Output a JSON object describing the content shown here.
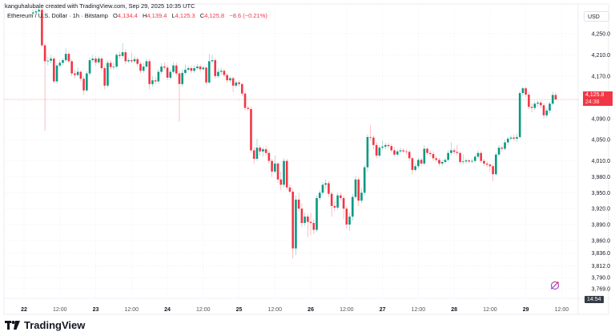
{
  "header": {
    "attribution": "kanguhalubale created with TradingView.com, Sep 29, 2025 10:35 UTC"
  },
  "legend": {
    "symbol": "Ethereum / U.S. Dollar · 1h · Bitstamp",
    "o_label": "O",
    "o": "4,134.4",
    "h_label": "H",
    "h": "4,139.4",
    "l_label": "L",
    "l": "4,125.3",
    "c_label": "C",
    "c": "4,125.8",
    "change": "−8.6 (−0.21%)"
  },
  "price_axis": {
    "currency": "USD"
  },
  "last_price": {
    "value": "4,125.8",
    "countdown": "24:38"
  },
  "time_readout": "14:54",
  "brand": "TradingView",
  "colors": {
    "up": "#089981",
    "down": "#f23645",
    "grid": "#f0f3fa",
    "text": "#131722"
  },
  "chart_data": {
    "type": "candlestick",
    "interval": "1h",
    "y_ticks": [
      4250,
      4210,
      4170,
      4090,
      4050,
      4010,
      3980,
      3950,
      3920,
      3890,
      3860,
      3836,
      3812,
      3790,
      3769
    ],
    "y_tick_labels": [
      "4,250.0",
      "4,210.0",
      "4,170.0",
      "4,090.0",
      "4,050.0",
      "4,010.0",
      "3,980.0",
      "3,950.0",
      "3,920.0",
      "3,890.0",
      "3,860.0",
      "3,836.0",
      "3,812.0",
      "3,790.0",
      "3,769.0"
    ],
    "x_ticks": [
      {
        "label": "22",
        "hour": 0
      },
      {
        "label": "12:00",
        "hour": 12
      },
      {
        "label": "23",
        "hour": 24
      },
      {
        "label": "12:00",
        "hour": 36
      },
      {
        "label": "24",
        "hour": 48
      },
      {
        "label": "12:00",
        "hour": 60
      },
      {
        "label": "25",
        "hour": 72
      },
      {
        "label": "12:00",
        "hour": 84
      },
      {
        "label": "26",
        "hour": 96
      },
      {
        "label": "12:00",
        "hour": 108
      },
      {
        "label": "27",
        "hour": 120
      },
      {
        "label": "12:00",
        "hour": 132
      },
      {
        "label": "28",
        "hour": 144
      },
      {
        "label": "12:00",
        "hour": 156
      },
      {
        "label": "29",
        "hour": 168
      },
      {
        "label": "12:00",
        "hour": 180
      }
    ],
    "first_candle_hour": 3,
    "last_price": 4125.8,
    "ohlc": [
      [
        4288,
        4296,
        4284,
        4290
      ],
      [
        4290,
        4297,
        4286,
        4292
      ],
      [
        4292,
        4300,
        4289,
        4295
      ],
      [
        4295,
        4298,
        4225,
        4228
      ],
      [
        4228,
        4232,
        4067,
        4198
      ],
      [
        4198,
        4206,
        4190,
        4199
      ],
      [
        4199,
        4210,
        4194,
        4203
      ],
      [
        4203,
        4207,
        4156,
        4160
      ],
      [
        4160,
        4194,
        4155,
        4190
      ],
      [
        4190,
        4200,
        4186,
        4195
      ],
      [
        4195,
        4204,
        4190,
        4200
      ],
      [
        4200,
        4222,
        4196,
        4212
      ],
      [
        4212,
        4216,
        4194,
        4198
      ],
      [
        4198,
        4202,
        4170,
        4175
      ],
      [
        4175,
        4182,
        4166,
        4172
      ],
      [
        4172,
        4186,
        4170,
        4178
      ],
      [
        4178,
        4181,
        4160,
        4165
      ],
      [
        4165,
        4170,
        4135,
        4143
      ],
      [
        4143,
        4180,
        4140,
        4175
      ],
      [
        4175,
        4205,
        4170,
        4200
      ],
      [
        4200,
        4210,
        4196,
        4203
      ],
      [
        4203,
        4208,
        4190,
        4196
      ],
      [
        4196,
        4208,
        4192,
        4203
      ],
      [
        4203,
        4207,
        4180,
        4185
      ],
      [
        4185,
        4190,
        4145,
        4152
      ],
      [
        4152,
        4200,
        4148,
        4195
      ],
      [
        4195,
        4200,
        4182,
        4187
      ],
      [
        4187,
        4195,
        4182,
        4188
      ],
      [
        4188,
        4214,
        4185,
        4210
      ],
      [
        4210,
        4216,
        4203,
        4208
      ],
      [
        4208,
        4232,
        4204,
        4215
      ],
      [
        4215,
        4220,
        4192,
        4198
      ],
      [
        4198,
        4204,
        4194,
        4200
      ],
      [
        4200,
        4214,
        4194,
        4198
      ],
      [
        4198,
        4208,
        4194,
        4202
      ],
      [
        4202,
        4206,
        4188,
        4193
      ],
      [
        4193,
        4197,
        4175,
        4180
      ],
      [
        4180,
        4195,
        4176,
        4188
      ],
      [
        4188,
        4203,
        4183,
        4198
      ],
      [
        4198,
        4202,
        4145,
        4155
      ],
      [
        4155,
        4170,
        4150,
        4162
      ],
      [
        4162,
        4168,
        4155,
        4160
      ],
      [
        4160,
        4183,
        4156,
        4178
      ],
      [
        4178,
        4194,
        4174,
        4188
      ],
      [
        4188,
        4196,
        4182,
        4186
      ],
      [
        4186,
        4190,
        4162,
        4167
      ],
      [
        4167,
        4183,
        4163,
        4178
      ],
      [
        4178,
        4196,
        4174,
        4190
      ],
      [
        4190,
        4195,
        4170,
        4175
      ],
      [
        4175,
        4180,
        4084,
        4155
      ],
      [
        4155,
        4182,
        4150,
        4176
      ],
      [
        4176,
        4192,
        4172,
        4182
      ],
      [
        4182,
        4190,
        4178,
        4185
      ],
      [
        4185,
        4190,
        4175,
        4180
      ],
      [
        4180,
        4190,
        4176,
        4185
      ],
      [
        4185,
        4193,
        4182,
        4188
      ],
      [
        4188,
        4192,
        4178,
        4183
      ],
      [
        4183,
        4190,
        4180,
        4186
      ],
      [
        4186,
        4189,
        4154,
        4158
      ],
      [
        4158,
        4212,
        4155,
        4198
      ],
      [
        4198,
        4210,
        4194,
        4200
      ],
      [
        4200,
        4204,
        4165,
        4170
      ],
      [
        4170,
        4185,
        4166,
        4178
      ],
      [
        4178,
        4186,
        4172,
        4180
      ],
      [
        4180,
        4184,
        4168,
        4172
      ],
      [
        4172,
        4176,
        4158,
        4162
      ],
      [
        4162,
        4170,
        4158,
        4166
      ],
      [
        4166,
        4169,
        4140,
        4152
      ],
      [
        4152,
        4162,
        4148,
        4158
      ],
      [
        4158,
        4162,
        4150,
        4155
      ],
      [
        4155,
        4158,
        4132,
        4137
      ],
      [
        4137,
        4141,
        4105,
        4110
      ],
      [
        4110,
        4114,
        4104,
        4108
      ],
      [
        4108,
        4112,
        4026,
        4030
      ],
      [
        4030,
        4036,
        4005,
        4014
      ],
      [
        4014,
        4052,
        4010,
        4035
      ],
      [
        4035,
        4040,
        4020,
        4028
      ],
      [
        4028,
        4036,
        4018,
        4032
      ],
      [
        4032,
        4038,
        4020,
        4025
      ],
      [
        4025,
        4030,
        4005,
        4010
      ],
      [
        4010,
        4014,
        3980,
        3990
      ],
      [
        3990,
        4020,
        3986,
        4005
      ],
      [
        4005,
        4008,
        3968,
        3975
      ],
      [
        3975,
        3990,
        3955,
        3965
      ],
      [
        3965,
        4015,
        3960,
        4010
      ],
      [
        4010,
        4014,
        3955,
        3960
      ],
      [
        3960,
        3966,
        3948,
        3952
      ],
      [
        3952,
        3958,
        3826,
        3845
      ],
      [
        3845,
        3945,
        3832,
        3937
      ],
      [
        3937,
        3950,
        3915,
        3920
      ],
      [
        3920,
        3930,
        3885,
        3893
      ],
      [
        3893,
        3912,
        3888,
        3905
      ],
      [
        3905,
        3910,
        3866,
        3895
      ],
      [
        3895,
        3912,
        3870,
        3893
      ],
      [
        3893,
        3900,
        3872,
        3880
      ],
      [
        3880,
        3945,
        3876,
        3940
      ],
      [
        3940,
        3955,
        3935,
        3950
      ],
      [
        3950,
        3970,
        3946,
        3965
      ],
      [
        3965,
        3975,
        3958,
        3968
      ],
      [
        3968,
        3972,
        3942,
        3948
      ],
      [
        3948,
        3952,
        3905,
        3925
      ],
      [
        3925,
        3935,
        3915,
        3922
      ],
      [
        3922,
        3950,
        3918,
        3945
      ],
      [
        3945,
        3950,
        3935,
        3940
      ],
      [
        3940,
        3945,
        3900,
        3920
      ],
      [
        3920,
        3925,
        3882,
        3890
      ],
      [
        3890,
        3912,
        3878,
        3905
      ],
      [
        3905,
        3948,
        3898,
        3942
      ],
      [
        3942,
        3982,
        3938,
        3975
      ],
      [
        3975,
        3980,
        3925,
        3935
      ],
      [
        3935,
        3958,
        3930,
        3950
      ],
      [
        3950,
        4002,
        3945,
        3998
      ],
      [
        3998,
        4060,
        3990,
        4055
      ],
      [
        4055,
        4077,
        4048,
        4054
      ],
      [
        4054,
        4058,
        4032,
        4040
      ],
      [
        4040,
        4045,
        4015,
        4020
      ],
      [
        4020,
        4040,
        4016,
        4035
      ],
      [
        4035,
        4048,
        4030,
        4037
      ],
      [
        4037,
        4044,
        4032,
        4040
      ],
      [
        4040,
        4044,
        4034,
        4038
      ],
      [
        4038,
        4042,
        4026,
        4030
      ],
      [
        4030,
        4036,
        4018,
        4022
      ],
      [
        4022,
        4032,
        4018,
        4028
      ],
      [
        4028,
        4035,
        4024,
        4030
      ],
      [
        4030,
        4034,
        4025,
        4028
      ],
      [
        4028,
        4032,
        4022,
        4027
      ],
      [
        4027,
        4030,
        4010,
        4015
      ],
      [
        4015,
        4018,
        3985,
        3993
      ],
      [
        3993,
        4005,
        3990,
        4000
      ],
      [
        4000,
        4016,
        3996,
        4012
      ],
      [
        4012,
        4016,
        4000,
        4005
      ],
      [
        4005,
        4040,
        4002,
        4033
      ],
      [
        4033,
        4036,
        4020,
        4025
      ],
      [
        4025,
        4030,
        4018,
        4023
      ],
      [
        4023,
        4028,
        4010,
        4015
      ],
      [
        4015,
        4020,
        4008,
        4012
      ],
      [
        4012,
        4016,
        4000,
        4005
      ],
      [
        4005,
        4012,
        4000,
        4008
      ],
      [
        4008,
        4016,
        4004,
        4012
      ],
      [
        4012,
        4030,
        4008,
        4025
      ],
      [
        4025,
        4045,
        4020,
        4030
      ],
      [
        4030,
        4034,
        4022,
        4027
      ],
      [
        4027,
        4040,
        4020,
        4025
      ],
      [
        4025,
        4028,
        4004,
        4008
      ],
      [
        4008,
        4022,
        4004,
        4009
      ],
      [
        4009,
        4015,
        4005,
        4011
      ],
      [
        4011,
        4014,
        4006,
        4009
      ],
      [
        4009,
        4014,
        4006,
        4010
      ],
      [
        4010,
        4022,
        4007,
        4018
      ],
      [
        4018,
        4030,
        4014,
        4025
      ],
      [
        4025,
        4028,
        4006,
        4010
      ],
      [
        4010,
        4014,
        4000,
        4005
      ],
      [
        4005,
        4010,
        3998,
        4003
      ],
      [
        4003,
        4006,
        3990,
        4000
      ],
      [
        4000,
        4004,
        3972,
        3985
      ],
      [
        3985,
        4026,
        3982,
        4022
      ],
      [
        4022,
        4040,
        4018,
        4035
      ],
      [
        4035,
        4038,
        4028,
        4033
      ],
      [
        4033,
        4050,
        4030,
        4045
      ],
      [
        4045,
        4056,
        4040,
        4052
      ],
      [
        4052,
        4058,
        4048,
        4054
      ],
      [
        4054,
        4060,
        4048,
        4052
      ],
      [
        4052,
        4062,
        4046,
        4055
      ],
      [
        4055,
        4142,
        4052,
        4138
      ],
      [
        4138,
        4150,
        4132,
        4147
      ],
      [
        4147,
        4150,
        4130,
        4135
      ],
      [
        4135,
        4140,
        4108,
        4112
      ],
      [
        4112,
        4118,
        4102,
        4110
      ],
      [
        4110,
        4122,
        4106,
        4118
      ],
      [
        4118,
        4124,
        4112,
        4120
      ],
      [
        4120,
        4124,
        4110,
        4115
      ],
      [
        4115,
        4119,
        4090,
        4096
      ],
      [
        4096,
        4110,
        4092,
        4105
      ],
      [
        4105,
        4122,
        4100,
        4118
      ],
      [
        4118,
        4140,
        4115,
        4134.4
      ],
      [
        4134.4,
        4139.4,
        4125.3,
        4125.8
      ]
    ]
  }
}
